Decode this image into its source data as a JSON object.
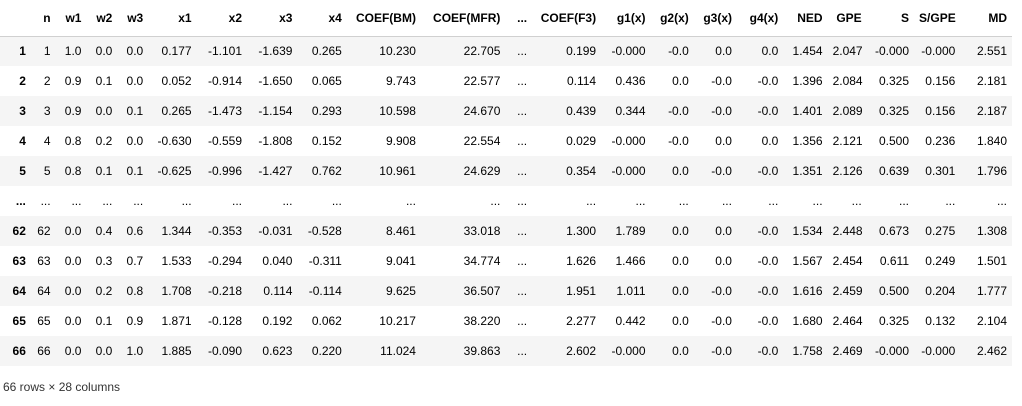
{
  "dataframe": {
    "columns": [
      "",
      "n",
      "w1",
      "w2",
      "w3",
      "x1",
      "x2",
      "x3",
      "x4",
      "COEF(BM)",
      "COEF(MFR)",
      "...",
      "COEF(F3)",
      "g1(x)",
      "g2(x)",
      "g3(x)",
      "g4(x)",
      "NED",
      "GPE",
      "S",
      "S/GPE",
      "MD"
    ],
    "rows": [
      [
        "1",
        "1",
        "1.0",
        "0.0",
        "0.0",
        "0.177",
        "-1.101",
        "-1.639",
        "0.265",
        "10.230",
        "22.705",
        "...",
        "0.199",
        "-0.000",
        "-0.0",
        "0.0",
        "0.0",
        "1.454",
        "2.047",
        "-0.000",
        "-0.000",
        "2.551"
      ],
      [
        "2",
        "2",
        "0.9",
        "0.1",
        "0.0",
        "0.052",
        "-0.914",
        "-1.650",
        "0.065",
        "9.743",
        "22.577",
        "...",
        "0.114",
        "0.436",
        "0.0",
        "-0.0",
        "-0.0",
        "1.396",
        "2.084",
        "0.325",
        "0.156",
        "2.181"
      ],
      [
        "3",
        "3",
        "0.9",
        "0.0",
        "0.1",
        "0.265",
        "-1.473",
        "-1.154",
        "0.293",
        "10.598",
        "24.670",
        "...",
        "0.439",
        "0.344",
        "-0.0",
        "-0.0",
        "-0.0",
        "1.401",
        "2.089",
        "0.325",
        "0.156",
        "2.187"
      ],
      [
        "4",
        "4",
        "0.8",
        "0.2",
        "0.0",
        "-0.630",
        "-0.559",
        "-1.808",
        "0.152",
        "9.908",
        "22.554",
        "...",
        "0.029",
        "-0.000",
        "-0.0",
        "0.0",
        "0.0",
        "1.356",
        "2.121",
        "0.500",
        "0.236",
        "1.840"
      ],
      [
        "5",
        "5",
        "0.8",
        "0.1",
        "0.1",
        "-0.625",
        "-0.996",
        "-1.427",
        "0.762",
        "10.961",
        "24.629",
        "...",
        "0.354",
        "-0.000",
        "0.0",
        "-0.0",
        "-0.0",
        "1.351",
        "2.126",
        "0.639",
        "0.301",
        "1.796"
      ],
      [
        "...",
        "...",
        "...",
        "...",
        "...",
        "...",
        "...",
        "...",
        "...",
        "...",
        "...",
        "...",
        "...",
        "...",
        "...",
        "...",
        "...",
        "...",
        "...",
        "...",
        "...",
        "..."
      ],
      [
        "62",
        "62",
        "0.0",
        "0.4",
        "0.6",
        "1.344",
        "-0.353",
        "-0.031",
        "-0.528",
        "8.461",
        "33.018",
        "...",
        "1.300",
        "1.789",
        "0.0",
        "0.0",
        "-0.0",
        "1.534",
        "2.448",
        "0.673",
        "0.275",
        "1.308"
      ],
      [
        "63",
        "63",
        "0.0",
        "0.3",
        "0.7",
        "1.533",
        "-0.294",
        "0.040",
        "-0.311",
        "9.041",
        "34.774",
        "...",
        "1.626",
        "1.466",
        "0.0",
        "0.0",
        "-0.0",
        "1.567",
        "2.454",
        "0.611",
        "0.249",
        "1.501"
      ],
      [
        "64",
        "64",
        "0.0",
        "0.2",
        "0.8",
        "1.708",
        "-0.218",
        "0.114",
        "-0.114",
        "9.625",
        "36.507",
        "...",
        "1.951",
        "1.011",
        "0.0",
        "-0.0",
        "-0.0",
        "1.616",
        "2.459",
        "0.500",
        "0.204",
        "1.777"
      ],
      [
        "65",
        "65",
        "0.0",
        "0.1",
        "0.9",
        "1.871",
        "-0.128",
        "0.192",
        "0.062",
        "10.217",
        "38.220",
        "...",
        "2.277",
        "0.442",
        "0.0",
        "-0.0",
        "-0.0",
        "1.680",
        "2.464",
        "0.325",
        "0.132",
        "2.104"
      ],
      [
        "66",
        "66",
        "0.0",
        "0.0",
        "1.0",
        "1.885",
        "-0.090",
        "0.623",
        "0.220",
        "11.024",
        "39.863",
        "...",
        "2.602",
        "-0.000",
        "0.0",
        "-0.0",
        "-0.0",
        "1.758",
        "2.469",
        "-0.000",
        "-0.000",
        "2.462"
      ]
    ]
  },
  "shape_text": "66 rows × 28 columns"
}
